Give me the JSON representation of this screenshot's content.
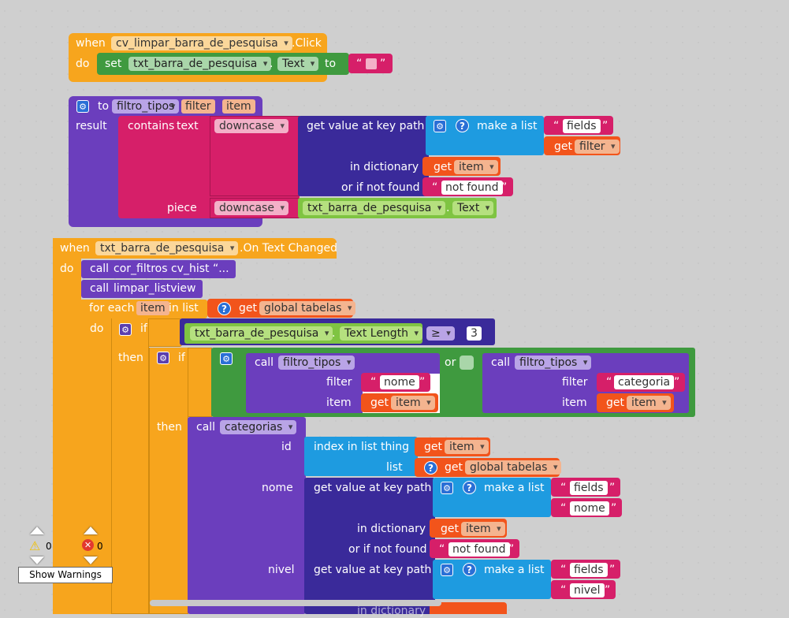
{
  "colors": {
    "event": "#f7a51d",
    "purple": "#6b3ebd",
    "magenta": "#d61f69",
    "indigo": "#3a2a9a",
    "cyan": "#1e9be0",
    "orange": "#f2541b",
    "lightgreen": "#7fc442",
    "green": "#3f9a3f"
  },
  "block1": {
    "when": "when",
    "component": "cv_limpar_barra_de_pesquisa",
    "event": ".Click",
    "do": "do",
    "set": "set",
    "target": "txt_barra_de_pesquisa",
    "dot": ".",
    "prop": "Text",
    "to": "to",
    "q_open": "“",
    "q_close": "”"
  },
  "block2": {
    "to": "to",
    "proc": "filtro_tipos",
    "p1": "filter",
    "p2": "item",
    "result": "result",
    "contains": "contains",
    "text_sel": "text",
    "downcase": "downcase",
    "getvalue": "get value at key path",
    "makelist": "make a list",
    "fields": "fields",
    "get": "get",
    "filter": "filter",
    "in_dict": "in dictionary",
    "item": "item",
    "if_not_found": "or if not found",
    "not_found": "not found",
    "piece": "piece",
    "downcase2": "downcase",
    "comp": "txt_barra_de_pesquisa",
    "dot": ".",
    "text": "Text",
    "q_open": "“",
    "q_close": "”"
  },
  "block3": {
    "when": "when",
    "component": "txt_barra_de_pesquisa",
    "event": ".On Text Changed",
    "do": "do",
    "call": "call",
    "cor_filtros": "cor_filtros cv_hist “...",
    "limpar": "limpar_listview",
    "foreach": "for each",
    "item": "item",
    "in_list": "in list",
    "get": "get",
    "global_tabelas": "global tabelas",
    "do2": "do",
    "if": "if",
    "comp": "txt_barra_de_pesquisa",
    "dot": ".",
    "text_length": "Text Length",
    "op": "≥",
    "num": "3",
    "then": "then",
    "if2": "if",
    "filtro_tipos": "filtro_tipos",
    "filter_lbl": "filter",
    "item_lbl": "item",
    "nome": "nome",
    "or": "or",
    "categoria": "categoria",
    "then2": "then",
    "categorias": "categorias",
    "id": "id",
    "index_in_list": "index in list  thing",
    "list": "list",
    "nome_lbl": "nome",
    "getvalue": "get value at key path",
    "makelist": "make a list",
    "fields": "fields",
    "nome_val": "nome",
    "in_dict": "in dictionary",
    "if_not_found": "or if not found",
    "not_found": "not found",
    "nivel": "nivel",
    "nivel_val": "nivel",
    "in_dict_partial": "in dictionary",
    "q_open": "“",
    "q_close": "”"
  },
  "warnings": {
    "warn_count": "0",
    "error_count": "0",
    "button": "Show Warnings"
  }
}
